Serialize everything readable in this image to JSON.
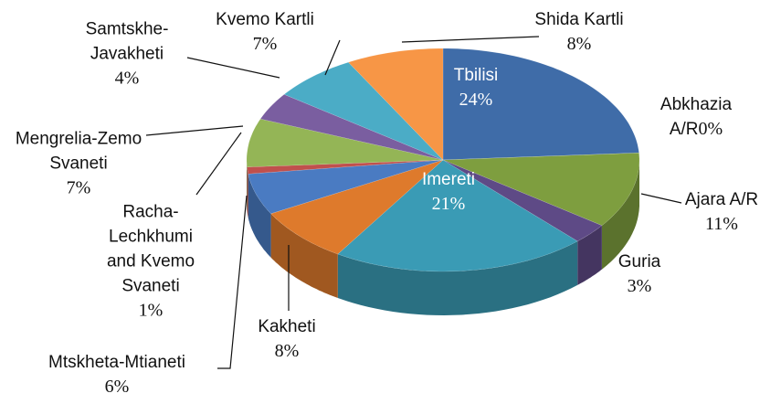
{
  "chart_data": {
    "type": "pie3d",
    "categories": [
      "Tbilisi",
      "Abkhazia A/R",
      "Ajara A/R",
      "Guria",
      "Imereti",
      "Kakheti",
      "Mtskheta-Mtianeti",
      "Racha-Lechkhumi and Kvemo Svaneti",
      "Mengrelia-Zemo Svaneti",
      "Samtskhe-Javakheti",
      "Kvemo Kartli",
      "Shida Kartli"
    ],
    "values": [
      24,
      0,
      11,
      3,
      21,
      8,
      6,
      1,
      7,
      4,
      7,
      8
    ],
    "value_labels": [
      "24%",
      "0%",
      "11%",
      "3%",
      "21%",
      "8%",
      "6%",
      "1%",
      "7%",
      "4%",
      "7%",
      "8%"
    ],
    "colors": [
      "#3f6ca8",
      "#4f81bd",
      "#7e9e3f",
      "#5e4a86",
      "#3a9bb5",
      "#de7a2c",
      "#4a7bc2",
      "#c0504d",
      "#94b556",
      "#7a5ea0",
      "#4bacc6",
      "#f79646"
    ]
  }
}
